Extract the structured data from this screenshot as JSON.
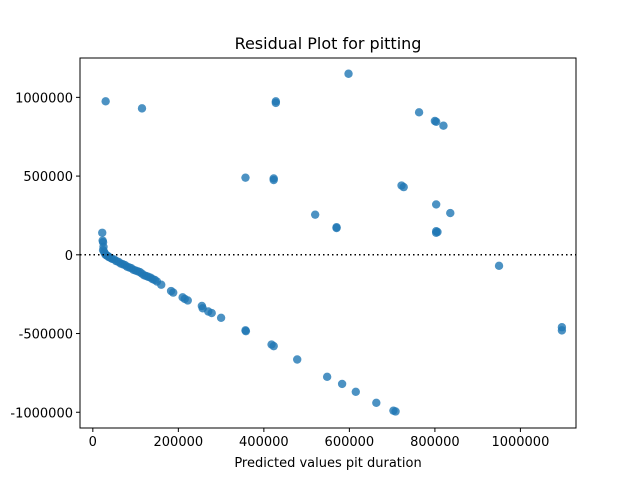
{
  "chart_data": {
    "type": "scatter",
    "title": "Residual Plot for pitting",
    "xlabel": "Predicted values pit duration",
    "ylabel": "",
    "xlim": [
      -30000,
      1130000
    ],
    "ylim": [
      -1100000,
      1250000
    ],
    "xticks": [
      0,
      200000,
      400000,
      600000,
      800000,
      1000000
    ],
    "xtick_labels": [
      "0",
      "200000",
      "400000",
      "600000",
      "800000",
      "1000000"
    ],
    "yticks": [
      -1000000,
      -500000,
      0,
      500000,
      1000000
    ],
    "ytick_labels": [
      "-1000000",
      "-500000",
      "0",
      "500000",
      "1000000"
    ],
    "reference_line": {
      "y": 0,
      "style": "dotted"
    },
    "grid": false,
    "point_color": "#1f77b4",
    "series": [
      {
        "points": [
          [
            30000,
            975000
          ],
          [
            115000,
            930000
          ],
          [
            598000,
            1150000
          ],
          [
            428000,
            975000
          ],
          [
            428000,
            965000
          ],
          [
            763000,
            905000
          ],
          [
            800000,
            850000
          ],
          [
            803000,
            845000
          ],
          [
            820000,
            820000
          ],
          [
            357000,
            490000
          ],
          [
            423000,
            485000
          ],
          [
            423000,
            475000
          ],
          [
            722000,
            440000
          ],
          [
            727000,
            430000
          ],
          [
            520000,
            255000
          ],
          [
            570000,
            175000
          ],
          [
            570000,
            170000
          ],
          [
            803000,
            320000
          ],
          [
            836000,
            265000
          ],
          [
            803000,
            150000
          ],
          [
            806000,
            145000
          ],
          [
            803000,
            140000
          ],
          [
            950000,
            -70000
          ],
          [
            1097000,
            -460000
          ],
          [
            1097000,
            -480000
          ],
          [
            22000,
            140000
          ],
          [
            23000,
            90000
          ],
          [
            24000,
            80000
          ],
          [
            25000,
            50000
          ],
          [
            24000,
            30000
          ],
          [
            26000,
            20000
          ],
          [
            28000,
            10000
          ],
          [
            30000,
            0
          ],
          [
            33000,
            -5000
          ],
          [
            36000,
            -10000
          ],
          [
            38000,
            -15000
          ],
          [
            42000,
            -20000
          ],
          [
            45000,
            -25000
          ],
          [
            50000,
            -30000
          ],
          [
            55000,
            -40000
          ],
          [
            60000,
            -45000
          ],
          [
            65000,
            -55000
          ],
          [
            70000,
            -60000
          ],
          [
            75000,
            -65000
          ],
          [
            80000,
            -75000
          ],
          [
            85000,
            -80000
          ],
          [
            90000,
            -85000
          ],
          [
            95000,
            -95000
          ],
          [
            100000,
            -100000
          ],
          [
            105000,
            -105000
          ],
          [
            110000,
            -110000
          ],
          [
            115000,
            -120000
          ],
          [
            120000,
            -130000
          ],
          [
            125000,
            -135000
          ],
          [
            130000,
            -140000
          ],
          [
            135000,
            -145000
          ],
          [
            140000,
            -155000
          ],
          [
            145000,
            -160000
          ],
          [
            150000,
            -170000
          ],
          [
            160000,
            -190000
          ],
          [
            183000,
            -230000
          ],
          [
            188000,
            -240000
          ],
          [
            210000,
            -270000
          ],
          [
            215000,
            -280000
          ],
          [
            222000,
            -290000
          ],
          [
            255000,
            -325000
          ],
          [
            257000,
            -340000
          ],
          [
            270000,
            -360000
          ],
          [
            278000,
            -370000
          ],
          [
            300000,
            -400000
          ],
          [
            357000,
            -480000
          ],
          [
            358000,
            -485000
          ],
          [
            418000,
            -570000
          ],
          [
            423000,
            -580000
          ],
          [
            478000,
            -665000
          ],
          [
            548000,
            -775000
          ],
          [
            583000,
            -820000
          ],
          [
            615000,
            -870000
          ],
          [
            663000,
            -940000
          ],
          [
            703000,
            -990000
          ],
          [
            708000,
            -995000
          ]
        ]
      }
    ]
  }
}
